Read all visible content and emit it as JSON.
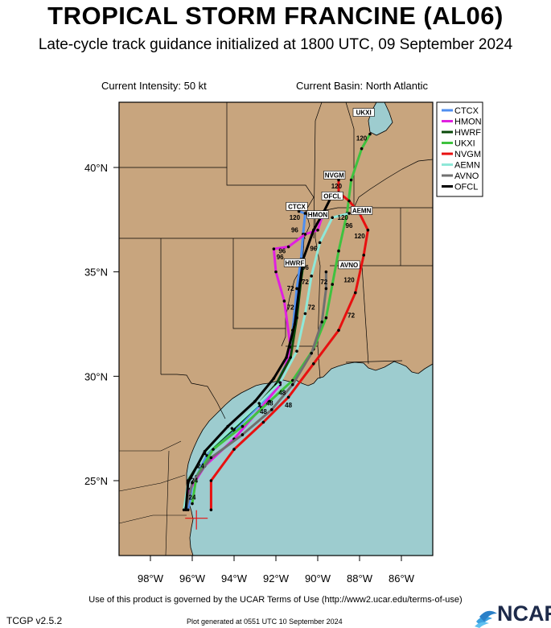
{
  "title": "TROPICAL STORM FRANCINE (AL06)",
  "subtitle": "Late-cycle track guidance initialized at 1800 UTC, 09 September 2024",
  "current_intensity": "Current Intensity: 50 kt",
  "current_basin": "Current Basin: North Atlantic",
  "footer": {
    "terms": "Use of this product is governed by the UCAR Terms of Use (http://www2.ucar.edu/terms-of-use)",
    "version": "TCGP v2.5.2",
    "generated": "Plot generated at 0551 UTC   10 September 2024",
    "logo": "NCAR"
  },
  "colors": {
    "land": "#c8a57e",
    "water": "#9dcccf",
    "border": "#000000"
  },
  "axes": {
    "lon_ticks": [
      {
        "value": -98,
        "label": "98°W"
      },
      {
        "value": -96,
        "label": "96°W"
      },
      {
        "value": -94,
        "label": "94°W"
      },
      {
        "value": -92,
        "label": "92°W"
      },
      {
        "value": -90,
        "label": "90°W"
      },
      {
        "value": -88,
        "label": "88°W"
      },
      {
        "value": -86,
        "label": "86°W"
      }
    ],
    "lat_ticks": [
      {
        "value": 25,
        "label": "25°N"
      },
      {
        "value": 30,
        "label": "30°N"
      },
      {
        "value": 35,
        "label": "35°N"
      },
      {
        "value": 40,
        "label": "40°N"
      }
    ],
    "lon_range": [
      -99.5,
      -84.5
    ],
    "lat_range": [
      21.5,
      43
    ]
  },
  "initial_position": {
    "lon": -95.8,
    "lat": 23.2
  },
  "chart_data": {
    "type": "map",
    "series": [
      {
        "name": "CTCX",
        "color": "#4f8ff0",
        "points": [
          [
            -96.2,
            23.6
          ],
          [
            -96.0,
            24.8
          ],
          [
            -95.3,
            26.2
          ],
          [
            -94.0,
            27.4
          ],
          [
            -92.8,
            28.6
          ],
          [
            -92.1,
            29.4
          ],
          [
            -91.5,
            30.6
          ],
          [
            -91.2,
            32.2
          ],
          [
            -91.0,
            34.2
          ],
          [
            -90.8,
            35.6
          ],
          [
            -90.7,
            36.8
          ],
          [
            -90.6,
            37.8
          ],
          [
            -90.9,
            37.9
          ]
        ],
        "tag": "CTCX",
        "tag_at": [
          -91.0,
          38.1
        ]
      },
      {
        "name": "HMON",
        "color": "#e020e0",
        "points": [
          [
            -96.3,
            23.7
          ],
          [
            -96.1,
            24.6
          ],
          [
            -95.4,
            25.7
          ],
          [
            -94.0,
            27.0
          ],
          [
            -92.7,
            28.5
          ],
          [
            -91.8,
            29.6
          ],
          [
            -91.3,
            31.4
          ],
          [
            -91.6,
            33.6
          ],
          [
            -92.0,
            35.0
          ],
          [
            -92.1,
            36.1
          ],
          [
            -91.4,
            36.2
          ],
          [
            -90.6,
            36.8
          ],
          [
            -90.0,
            37.0
          ],
          [
            -89.8,
            37.6
          ]
        ],
        "tag": "HMON",
        "tag_at": [
          -90.0,
          37.7
        ]
      },
      {
        "name": "HWRF",
        "color": "#0a4a0a",
        "points": [
          [
            -96.3,
            23.7
          ],
          [
            -96.2,
            25.0
          ],
          [
            -95.4,
            26.3
          ],
          [
            -94.0,
            27.5
          ],
          [
            -92.8,
            28.7
          ],
          [
            -92.0,
            29.6
          ],
          [
            -91.3,
            30.9
          ],
          [
            -91.0,
            32.8
          ],
          [
            -90.8,
            34.6
          ],
          [
            -90.7,
            35.3
          ]
        ],
        "tag": "HWRF",
        "tag_at": [
          -91.1,
          35.4
        ]
      },
      {
        "name": "UKXI",
        "color": "#3fc23f",
        "points": [
          [
            -96.0,
            23.9
          ],
          [
            -95.8,
            25.2
          ],
          [
            -95.0,
            26.5
          ],
          [
            -93.6,
            27.6
          ],
          [
            -92.3,
            28.8
          ],
          [
            -91.2,
            29.8
          ],
          [
            -90.2,
            31.3
          ],
          [
            -89.6,
            32.8
          ],
          [
            -89.3,
            34.4
          ],
          [
            -89.0,
            36.0
          ],
          [
            -88.6,
            37.8
          ],
          [
            -88.4,
            39.4
          ],
          [
            -87.9,
            40.9
          ],
          [
            -87.5,
            41.6
          ]
        ],
        "tag": "UKXI",
        "tag_at": [
          -87.8,
          42.6
        ]
      },
      {
        "name": "NVGM",
        "color": "#e81010",
        "points": [
          [
            -95.1,
            23.6
          ],
          [
            -95.1,
            25.0
          ],
          [
            -94.0,
            26.5
          ],
          [
            -92.6,
            27.8
          ],
          [
            -91.4,
            29.0
          ],
          [
            -90.2,
            30.6
          ],
          [
            -89.0,
            32.2
          ],
          [
            -88.2,
            34.0
          ],
          [
            -87.8,
            35.8
          ],
          [
            -87.6,
            37.0
          ],
          [
            -88.0,
            37.8
          ],
          [
            -88.5,
            38.4
          ],
          [
            -89.0,
            38.8
          ],
          [
            -89.0,
            39.4
          ]
        ],
        "tag": "NVGM",
        "tag_at": [
          -89.2,
          39.6
        ]
      },
      {
        "name": "AEMN",
        "color": "#8fe8d8",
        "points": [
          [
            -96.4,
            23.6
          ],
          [
            -96.2,
            24.9
          ],
          [
            -95.4,
            26.3
          ],
          [
            -94.1,
            27.5
          ],
          [
            -92.8,
            28.7
          ],
          [
            -91.8,
            29.7
          ],
          [
            -91.0,
            31.2
          ],
          [
            -90.6,
            33.0
          ],
          [
            -90.3,
            34.8
          ],
          [
            -89.9,
            36.4
          ],
          [
            -89.3,
            37.6
          ],
          [
            -88.5,
            37.8
          ]
        ],
        "tag": "AEMN",
        "tag_at": [
          -87.9,
          37.9
        ]
      },
      {
        "name": "AVNO",
        "color": "#707070",
        "points": [
          [
            -96.3,
            23.6
          ],
          [
            -96.0,
            24.9
          ],
          [
            -95.1,
            26.1
          ],
          [
            -93.6,
            27.2
          ],
          [
            -92.2,
            28.4
          ],
          [
            -91.2,
            29.6
          ],
          [
            -90.3,
            31.1
          ],
          [
            -89.8,
            32.6
          ],
          [
            -89.6,
            34.2
          ],
          [
            -89.6,
            35.0
          ]
        ],
        "tag": "AVNO",
        "tag_at": [
          -88.5,
          35.3
        ]
      },
      {
        "name": "OFCL",
        "color": "#000000",
        "points": [
          [
            -96.3,
            23.7
          ],
          [
            -96.2,
            24.9
          ],
          [
            -95.4,
            26.4
          ],
          [
            -94.3,
            27.6
          ],
          [
            -93.0,
            28.8
          ],
          [
            -92.1,
            29.9
          ],
          [
            -91.5,
            30.9
          ],
          [
            -91.1,
            32.5
          ],
          [
            -90.9,
            34.1
          ],
          [
            -90.7,
            35.6
          ],
          [
            -90.2,
            37.0
          ],
          [
            -89.7,
            37.9
          ],
          [
            -89.4,
            38.5
          ]
        ],
        "tag": "OFCL",
        "tag_at": [
          -89.3,
          38.6
        ]
      }
    ],
    "hour_labels": [
      {
        "text": "120",
        "at": [
          -87.9,
          41.3
        ]
      },
      {
        "text": "120",
        "at": [
          -89.1,
          39.0
        ]
      },
      {
        "text": "120",
        "at": [
          -91.1,
          37.5
        ]
      },
      {
        "text": "120",
        "at": [
          -88.8,
          37.5
        ]
      },
      {
        "text": "96",
        "at": [
          -88.5,
          37.1
        ]
      },
      {
        "text": "120",
        "at": [
          -88.0,
          36.6
        ]
      },
      {
        "text": "96",
        "at": [
          -91.1,
          36.9
        ]
      },
      {
        "text": "96",
        "at": [
          -91.7,
          35.9
        ]
      },
      {
        "text": "96",
        "at": [
          -91.8,
          35.6
        ]
      },
      {
        "text": "96",
        "at": [
          -90.2,
          36.0
        ]
      },
      {
        "text": "96",
        "at": [
          -90.6,
          35.1
        ]
      },
      {
        "text": "120",
        "at": [
          -88.5,
          34.5
        ]
      },
      {
        "text": "72",
        "at": [
          -91.3,
          34.1
        ]
      },
      {
        "text": "72",
        "at": [
          -90.6,
          34.4
        ]
      },
      {
        "text": "72",
        "at": [
          -89.7,
          34.4
        ]
      },
      {
        "text": "72",
        "at": [
          -91.3,
          33.2
        ]
      },
      {
        "text": "72",
        "at": [
          -90.3,
          33.2
        ]
      },
      {
        "text": "72",
        "at": [
          -88.4,
          32.8
        ]
      },
      {
        "text": "48",
        "at": [
          -91.7,
          29.1
        ]
      },
      {
        "text": "48",
        "at": [
          -92.3,
          28.6
        ]
      },
      {
        "text": "48",
        "at": [
          -92.6,
          28.2
        ]
      },
      {
        "text": "48",
        "at": [
          -91.4,
          28.5
        ]
      },
      {
        "text": "24",
        "at": [
          -95.6,
          25.6
        ]
      },
      {
        "text": "24",
        "at": [
          -95.9,
          24.9
        ]
      },
      {
        "text": "24",
        "at": [
          -96.0,
          24.1
        ]
      }
    ]
  },
  "legend": [
    {
      "label": "CTCX",
      "color": "#4f8ff0"
    },
    {
      "label": "HMON",
      "color": "#e020e0"
    },
    {
      "label": "HWRF",
      "color": "#0a4a0a"
    },
    {
      "label": "UKXI",
      "color": "#3fc23f"
    },
    {
      "label": "NVGM",
      "color": "#e81010"
    },
    {
      "label": "AEMN",
      "color": "#8fe8d8"
    },
    {
      "label": "AVNO",
      "color": "#707070"
    },
    {
      "label": "OFCL",
      "color": "#000000"
    }
  ]
}
